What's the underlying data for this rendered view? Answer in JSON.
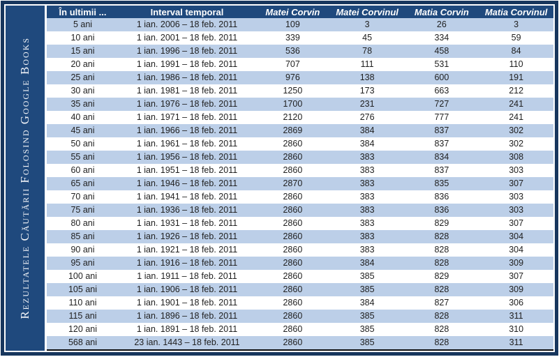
{
  "sidebar": {
    "title": "Rezultatele Căutării Folosind Google Books"
  },
  "chart_data": {
    "type": "table",
    "title": "Rezultatele căutării folosind Google Books",
    "columns": [
      "În ultimii ...",
      "Interval temporal",
      "Matei Corvin",
      "Matei Corvinul",
      "Matia Corvin",
      "Matia Corvinul"
    ],
    "rows": [
      [
        "5 ani",
        "1 ian. 2006 – 18 feb. 2011",
        "109",
        "3",
        "26",
        "3"
      ],
      [
        "10 ani",
        "1 ian. 2001 – 18 feb. 2011",
        "339",
        "45",
        "334",
        "59"
      ],
      [
        "15 ani",
        "1 ian. 1996 – 18 feb. 2011",
        "536",
        "78",
        "458",
        "84"
      ],
      [
        "20 ani",
        "1 ian. 1991 – 18 feb. 2011",
        "707",
        "111",
        "531",
        "110"
      ],
      [
        "25 ani",
        "1 ian. 1986 – 18 feb. 2011",
        "976",
        "138",
        "600",
        "191"
      ],
      [
        "30 ani",
        "1 ian. 1981 – 18 feb. 2011",
        "1250",
        "173",
        "663",
        "212"
      ],
      [
        "35 ani",
        "1 ian. 1976 – 18 feb. 2011",
        "1700",
        "231",
        "727",
        "241"
      ],
      [
        "40 ani",
        "1 ian. 1971 – 18 feb. 2011",
        "2120",
        "276",
        "777",
        "241"
      ],
      [
        "45 ani",
        "1 ian. 1966 – 18 feb. 2011",
        "2869",
        "384",
        "837",
        "302"
      ],
      [
        "50 ani",
        "1 ian. 1961 – 18 feb. 2011",
        "2860",
        "384",
        "837",
        "302"
      ],
      [
        "55 ani",
        "1 ian. 1956 – 18 feb. 2011",
        "2860",
        "383",
        "834",
        "308"
      ],
      [
        "60 ani",
        "1 ian. 1951 – 18 feb. 2011",
        "2860",
        "383",
        "837",
        "303"
      ],
      [
        "65 ani",
        "1 ian. 1946 – 18 feb. 2011",
        "2870",
        "383",
        "835",
        "307"
      ],
      [
        "70 ani",
        "1 ian. 1941 – 18 feb. 2011",
        "2860",
        "383",
        "836",
        "303"
      ],
      [
        "75 ani",
        "1 ian. 1936 – 18 feb. 2011",
        "2860",
        "383",
        "836",
        "303"
      ],
      [
        "80 ani",
        "1 ian. 1931 – 18 feb. 2011",
        "2860",
        "383",
        "829",
        "307"
      ],
      [
        "85 ani",
        "1 ian. 1926 – 18 feb. 2011",
        "2860",
        "383",
        "828",
        "304"
      ],
      [
        "90 ani",
        "1 ian. 1921 – 18 feb. 2011",
        "2860",
        "383",
        "828",
        "304"
      ],
      [
        "95 ani",
        "1 ian. 1916 – 18 feb. 2011",
        "2860",
        "384",
        "828",
        "309"
      ],
      [
        "100 ani",
        "1 ian. 1911 – 18 feb. 2011",
        "2860",
        "385",
        "829",
        "307"
      ],
      [
        "105 ani",
        "1 ian. 1906 – 18 feb. 2011",
        "2860",
        "385",
        "828",
        "309"
      ],
      [
        "110 ani",
        "1 ian. 1901 – 18 feb. 2011",
        "2860",
        "384",
        "827",
        "306"
      ],
      [
        "115 ani",
        "1 ian. 1896 – 18 feb. 2011",
        "2860",
        "385",
        "828",
        "311"
      ],
      [
        "120 ani",
        "1 ian. 1891 – 18 feb. 2011",
        "2860",
        "385",
        "828",
        "310"
      ],
      [
        "568 ani",
        "23 ian. 1443 – 18 feb. 2011",
        "2860",
        "385",
        "828",
        "311"
      ]
    ],
    "layout": {
      "striped": true,
      "first_stripe": "shaded",
      "term_columns_italic": true
    }
  },
  "colors": {
    "outer_border": "#17365D",
    "header_background": "#1F497D",
    "sidebar_background": "#1F497D",
    "row_shade": "#BCCFE8",
    "row_alt": "#FFFFFF",
    "header_text": "#FFFFFF",
    "body_text": "#1F1F1F",
    "table_bottom_border": "#0D0D0D"
  }
}
